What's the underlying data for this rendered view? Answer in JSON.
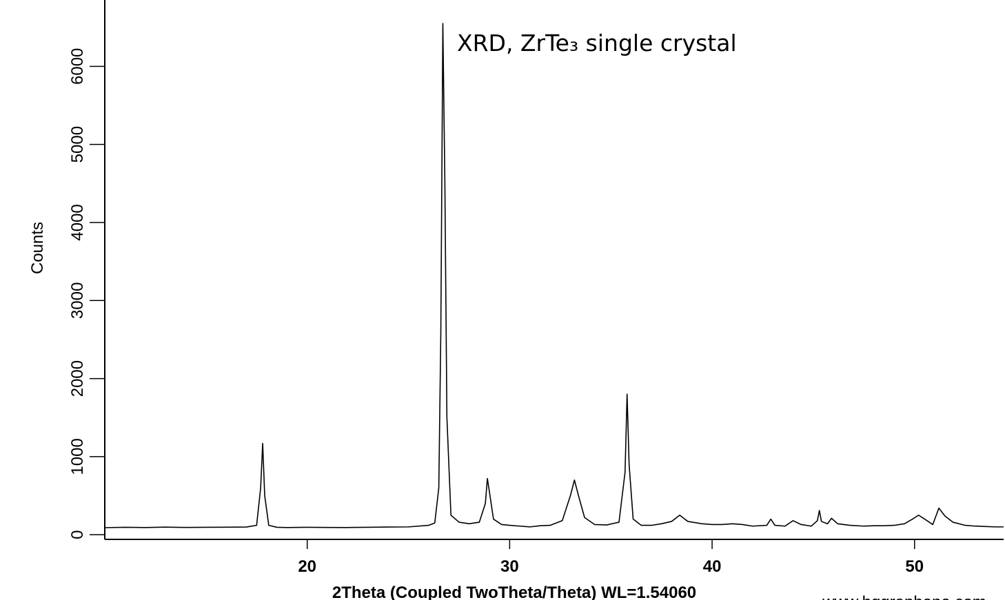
{
  "chart_data": {
    "type": "line",
    "annotation": "XRD, ZrTe₃ single crystal",
    "xlabel": "2Theta (Coupled TwoTheta/Theta) WL=1.54060",
    "ylabel": "Counts",
    "watermark": "www.hqgraphene.com",
    "xlim": [
      10,
      54.4
    ],
    "ylim": [
      -60,
      6850
    ],
    "xticks": [
      20,
      30,
      40,
      50
    ],
    "yticks": [
      0,
      1000,
      2000,
      3000,
      4000,
      5000,
      6000
    ],
    "x": [
      10,
      11,
      12,
      13,
      14,
      15,
      16,
      17,
      17.5,
      17.7,
      17.8,
      17.9,
      18.1,
      18.5,
      19,
      20,
      21,
      22,
      23,
      24,
      25,
      26,
      26.3,
      26.5,
      26.6,
      26.7,
      26.8,
      26.9,
      27.1,
      27.5,
      28,
      28.5,
      28.8,
      28.9,
      29.0,
      29.2,
      29.6,
      30,
      30.5,
      31,
      31.5,
      32,
      32.6,
      33.0,
      33.2,
      33.4,
      33.7,
      34.2,
      34.8,
      35.4,
      35.7,
      35.8,
      35.9,
      36.1,
      36.5,
      37,
      37.5,
      38,
      38.4,
      38.8,
      39.5,
      40,
      40.5,
      41,
      41.5,
      42,
      42.7,
      42.9,
      43.1,
      43.6,
      44.0,
      44.4,
      44.9,
      45.2,
      45.3,
      45.4,
      45.7,
      45.9,
      46.2,
      46.8,
      47.5,
      48,
      48.5,
      49,
      49.5,
      49.9,
      50.2,
      50.5,
      50.9,
      51.2,
      51.5,
      51.9,
      52.5,
      53,
      53.5,
      54,
      54.4
    ],
    "series": [
      {
        "color": "#000000",
        "values": [
          90,
          95,
          92,
          97,
          93,
          95,
          96,
          98,
          120,
          600,
          1170,
          500,
          120,
          95,
          92,
          95,
          93,
          92,
          95,
          98,
          100,
          120,
          150,
          600,
          2600,
          6550,
          4500,
          1500,
          250,
          160,
          140,
          160,
          400,
          720,
          550,
          200,
          130,
          120,
          110,
          100,
          115,
          120,
          180,
          500,
          700,
          500,
          220,
          130,
          125,
          160,
          800,
          1800,
          900,
          200,
          120,
          120,
          140,
          170,
          250,
          170,
          140,
          130,
          130,
          140,
          130,
          110,
          120,
          200,
          120,
          110,
          180,
          130,
          110,
          180,
          310,
          170,
          140,
          210,
          140,
          120,
          110,
          115,
          115,
          120,
          140,
          200,
          250,
          200,
          130,
          340,
          240,
          160,
          120,
          110,
          105,
          100,
          100
        ]
      }
    ]
  }
}
